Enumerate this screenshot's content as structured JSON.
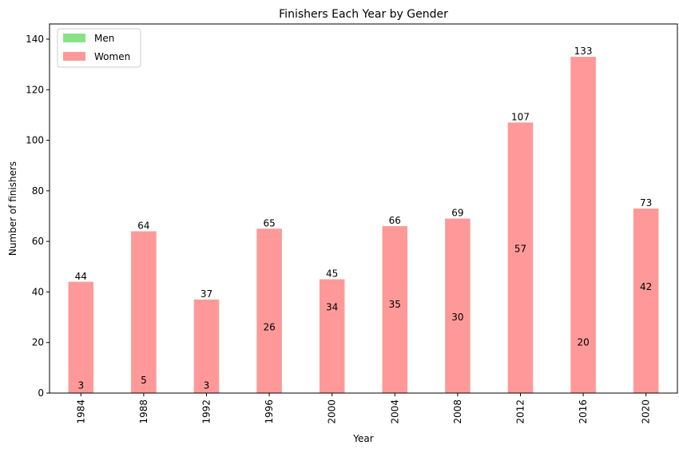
{
  "chart_data": {
    "type": "bar",
    "title": "Finishers Each Year by Gender",
    "xlabel": "Year",
    "ylabel": "Number of finishers",
    "categories": [
      "1984",
      "1988",
      "1992",
      "1996",
      "2000",
      "2004",
      "2008",
      "2012",
      "2016",
      "2020"
    ],
    "series": [
      {
        "name": "Men",
        "color": "#88e288",
        "values": [
          44,
          64,
          37,
          65,
          45,
          66,
          69,
          107,
          133,
          73
        ]
      },
      {
        "name": "Women",
        "color": "#ff9999",
        "values": [
          3,
          5,
          3,
          26,
          34,
          35,
          30,
          57,
          20,
          42
        ]
      }
    ],
    "ylim": [
      0,
      146
    ],
    "yticks": [
      0,
      20,
      40,
      60,
      80,
      100,
      120,
      140
    ],
    "legend": "top-left",
    "grid": false
  }
}
